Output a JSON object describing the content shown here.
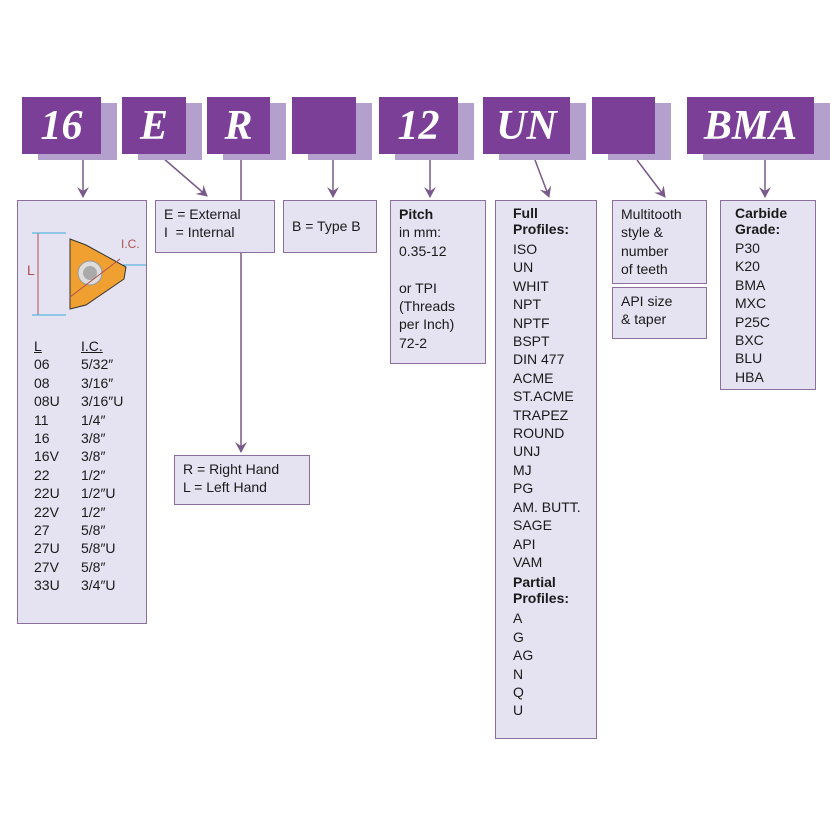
{
  "codes": [
    "16",
    "E",
    "R",
    "",
    "12",
    "UN",
    "",
    "BMA"
  ],
  "size": {
    "label_l": "L",
    "label_ic": "I.C.",
    "headers": [
      "L",
      "I.C."
    ],
    "rows": [
      [
        "06",
        "5/32″"
      ],
      [
        "08",
        "3/16″"
      ],
      [
        "08U",
        "3/16″U"
      ],
      [
        "11",
        "1/4″"
      ],
      [
        "16",
        "3/8″"
      ],
      [
        "16V",
        "3/8″"
      ],
      [
        "22",
        "1/2″"
      ],
      [
        "22U",
        "1/2″U"
      ],
      [
        "22V",
        "1/2″"
      ],
      [
        "27",
        "5/8″"
      ],
      [
        "27U",
        "5/8″U"
      ],
      [
        "27V",
        "5/8″"
      ],
      [
        "33U",
        "3/4″U"
      ]
    ]
  },
  "type": {
    "line1": "E = External",
    "line2": "I  = Internal"
  },
  "hand": {
    "line1": "R = Right Hand",
    "line2": "L = Left Hand"
  },
  "style": {
    "text": "B = Type B"
  },
  "pitch": {
    "title": "Pitch",
    "lines": [
      "in mm:",
      "0.35-12",
      "",
      "or TPI",
      "(Threads",
      "per Inch)",
      "72-2"
    ]
  },
  "profiles": {
    "full_title": [
      "Full",
      "Profiles:"
    ],
    "full": [
      "ISO",
      "UN",
      "WHIT",
      "NPT",
      "NPTF",
      "BSPT",
      "DIN 477",
      "ACME",
      "ST.ACME",
      "TRAPEZ",
      "ROUND",
      "UNJ",
      "MJ",
      "PG",
      "AM. BUTT.",
      "SAGE",
      "API",
      "VAM"
    ],
    "partial_title": [
      "Partial",
      "Profiles:"
    ],
    "partial": [
      "A",
      "G",
      "AG",
      "N",
      "Q",
      "U"
    ]
  },
  "multitooth": {
    "lines": [
      "Multitooth",
      "style &",
      "number",
      "of teeth"
    ]
  },
  "api": {
    "lines": [
      "API size",
      "& taper"
    ]
  },
  "grade": {
    "title": [
      "Carbide",
      "Grade:"
    ],
    "items": [
      "P30",
      "K20",
      "BMA",
      "MXC",
      "P25C",
      "BXC",
      "BLU",
      "HBA"
    ]
  },
  "colors": {
    "purple": "#7b3f98",
    "shadow": "#b3a0cc",
    "box": "#e5e3f1",
    "insert": "#f0a030"
  }
}
